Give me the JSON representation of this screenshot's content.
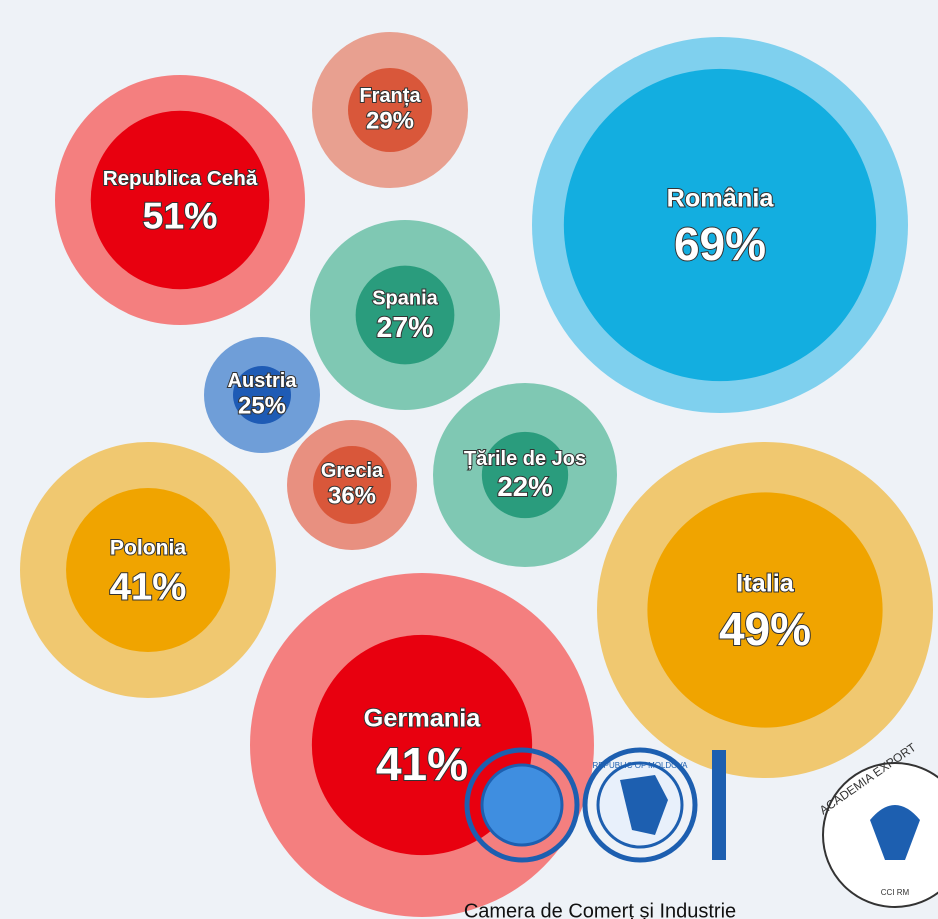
{
  "chart_data": {
    "type": "bubble",
    "categories": [
      "Franța",
      "Republica Cehă",
      "România",
      "Spania",
      "Austria",
      "Grecia",
      "Țările de Jos",
      "Polonia",
      "Italia",
      "Germania"
    ],
    "values": [
      29,
      51,
      69,
      27,
      25,
      36,
      22,
      41,
      49,
      41
    ],
    "value_labels": [
      "29%",
      "51%",
      "69%",
      "27%",
      "25%",
      "36%",
      "22%",
      "41%",
      "49%",
      "41%"
    ],
    "colors": [
      "#d9573a",
      "#e8000f",
      "#13aee0",
      "#2a9c7d",
      "#1e5bb5",
      "#d9573a",
      "#2a9c7d",
      "#f0a400",
      "#f0a400",
      "#e8000f"
    ],
    "halo_colors": [
      "#e8a090",
      "#f47f7f",
      "#7fd0ee",
      "#7fc8b3",
      "#6f9ed8",
      "#e89080",
      "#7fc8b3",
      "#f0c870",
      "#f0c870",
      "#f47f7f"
    ]
  },
  "footer": {
    "caption": "Camera de Comerț și Industrie",
    "emblem_text": "REPUBLIC OF MOLDOVA",
    "badge_text": "ACADEMIA EXPORT",
    "badge_sub": "CCI RM"
  }
}
